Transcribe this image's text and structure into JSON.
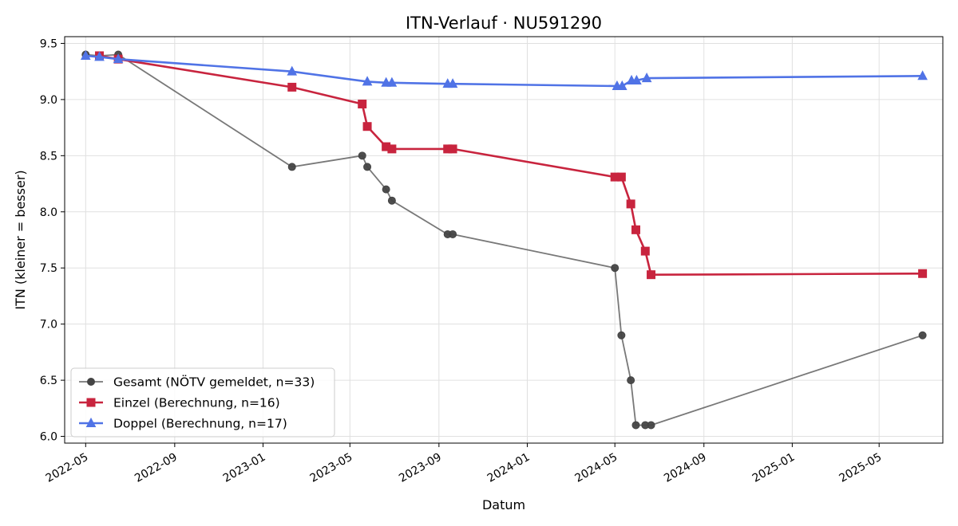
{
  "chart_data": {
    "type": "line",
    "title": "ITN-Verlauf · NU591290",
    "xlabel": "Datum",
    "ylabel": "ITN  (kleiner = besser)",
    "x_ticks": [
      "2022-05",
      "2022-09",
      "2023-01",
      "2023-05",
      "2023-09",
      "2024-01",
      "2024-05",
      "2024-09",
      "2025-01",
      "2025-05"
    ],
    "y_ticks": [
      "6.0",
      "6.5",
      "7.0",
      "7.5",
      "8.0",
      "8.5",
      "9.0",
      "9.5"
    ],
    "xlim": [
      "2022-04-02",
      "2025-07-28"
    ],
    "ylim": [
      5.94,
      9.56
    ],
    "grid": true,
    "legend_position": "lower-left",
    "series": [
      {
        "name": "Gesamt (NÖTV gemeldet, n=33)",
        "color": "#444444",
        "marker": "circle",
        "points": [
          [
            "2022-05-01",
            9.4
          ],
          [
            "2022-05-20",
            9.39
          ],
          [
            "2022-06-15",
            9.4
          ],
          [
            "2023-02-10",
            8.4
          ],
          [
            "2023-05-18",
            8.5
          ],
          [
            "2023-05-25",
            8.4
          ],
          [
            "2023-06-20",
            8.2
          ],
          [
            "2023-06-28",
            8.1
          ],
          [
            "2023-09-13",
            7.8
          ],
          [
            "2023-09-20",
            7.8
          ],
          [
            "2024-05-01",
            7.5
          ],
          [
            "2024-05-10",
            6.9
          ],
          [
            "2024-05-23",
            6.5
          ],
          [
            "2024-05-30",
            6.1
          ],
          [
            "2024-06-12",
            6.1
          ],
          [
            "2024-06-20",
            6.1
          ],
          [
            "2025-06-30",
            6.9
          ]
        ]
      },
      {
        "name": "Einzel (Berechnung, n=16)",
        "color": "#c8243e",
        "marker": "square",
        "points": [
          [
            "2022-05-20",
            9.39
          ],
          [
            "2022-06-15",
            9.36
          ],
          [
            "2023-02-10",
            9.11
          ],
          [
            "2023-05-18",
            8.96
          ],
          [
            "2023-05-25",
            8.76
          ],
          [
            "2023-06-20",
            8.58
          ],
          [
            "2023-06-28",
            8.56
          ],
          [
            "2023-09-13",
            8.56
          ],
          [
            "2023-09-20",
            8.56
          ],
          [
            "2024-05-01",
            8.31
          ],
          [
            "2024-05-10",
            8.31
          ],
          [
            "2024-05-23",
            8.07
          ],
          [
            "2024-05-30",
            7.84
          ],
          [
            "2024-06-12",
            7.65
          ],
          [
            "2024-06-20",
            7.44
          ],
          [
            "2025-06-30",
            7.45
          ]
        ]
      },
      {
        "name": "Doppel (Berechnung, n=17)",
        "color": "#5073e6",
        "marker": "triangle",
        "points": [
          [
            "2022-05-01",
            9.39
          ],
          [
            "2022-05-20",
            9.38
          ],
          [
            "2022-06-15",
            9.36
          ],
          [
            "2023-02-10",
            9.25
          ],
          [
            "2023-05-25",
            9.16
          ],
          [
            "2023-06-20",
            9.15
          ],
          [
            "2023-06-28",
            9.15
          ],
          [
            "2023-09-13",
            9.14
          ],
          [
            "2023-09-20",
            9.14
          ],
          [
            "2024-05-04",
            9.12
          ],
          [
            "2024-05-11",
            9.12
          ],
          [
            "2024-05-24",
            9.17
          ],
          [
            "2024-05-31",
            9.17
          ],
          [
            "2024-06-14",
            9.19
          ],
          [
            "2025-06-30",
            9.21
          ]
        ]
      }
    ]
  }
}
